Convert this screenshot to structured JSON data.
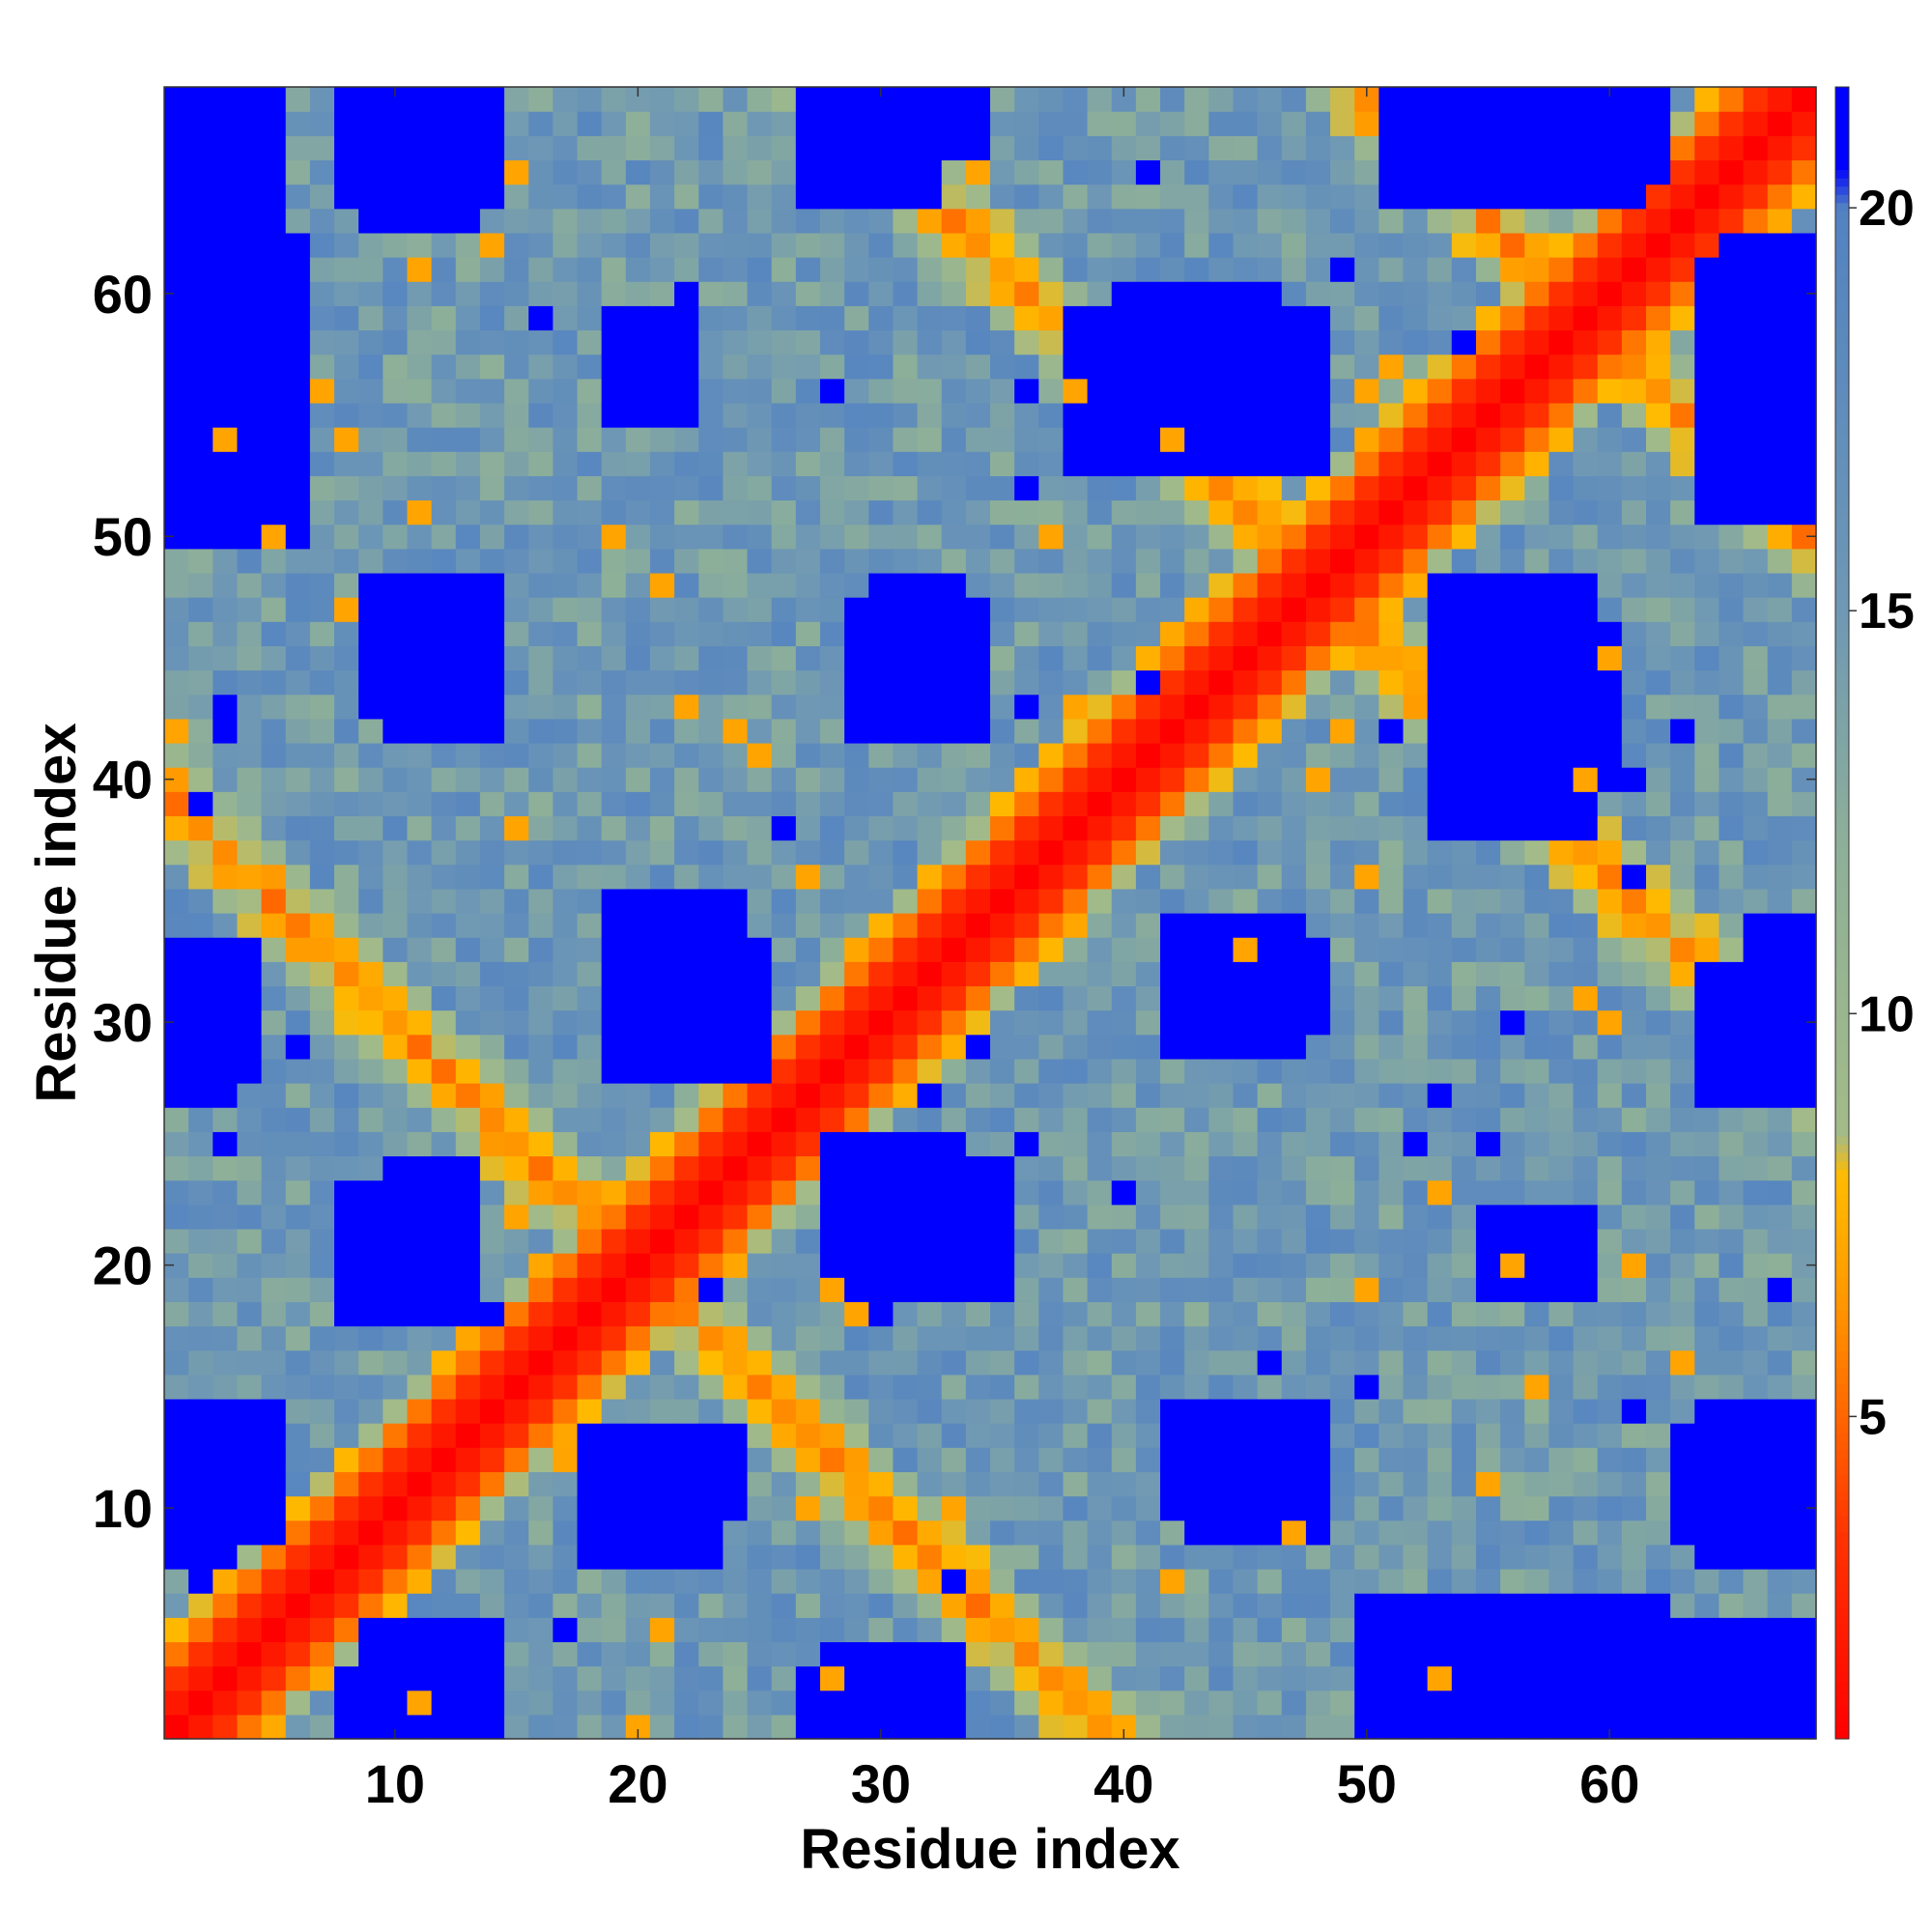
{
  "chart_data": {
    "type": "heatmap",
    "xlabel": "Residue index",
    "ylabel": "Residue index",
    "n_residues": 68,
    "xlim": [
      0.5,
      68.5
    ],
    "ylim": [
      0.5,
      68.5
    ],
    "x_ticks": [
      10,
      20,
      30,
      40,
      50,
      60
    ],
    "y_ticks": [
      10,
      20,
      30,
      40,
      50,
      60
    ],
    "colorbar": {
      "range": [
        1,
        21.5
      ],
      "ticks": [
        5,
        10,
        15,
        20
      ],
      "stops": [
        {
          "value": 1,
          "color": "#ff0000"
        },
        {
          "value": 3.5,
          "color": "#ff3300"
        },
        {
          "value": 5,
          "color": "#ff6600"
        },
        {
          "value": 6.5,
          "color": "#ff9900"
        },
        {
          "value": 8,
          "color": "#ffbb00"
        },
        {
          "value": 8.5,
          "color": "#a3bb88"
        },
        {
          "value": 12,
          "color": "#8eb098"
        },
        {
          "value": 15,
          "color": "#6f98b4"
        },
        {
          "value": 20,
          "color": "#5282c2"
        },
        {
          "value": 20.5,
          "color": "#0000ff"
        }
      ]
    },
    "matrix_rule": "d(i,j) = distance between residues i and j; 0-3.8 on diagonal band, ~5-8 on antidiagonal contact bands (i+j≈40, i+j≈96, |i-j|≈15-17 folds), >20 in far regions",
    "contact_bands": [
      {
        "type": "diagonal",
        "offset": 0
      },
      {
        "type": "antidiagonal",
        "sum": 40
      },
      {
        "type": "antidiagonal",
        "sum": 96
      },
      {
        "type": "antidiagonal",
        "sum": 118
      }
    ],
    "far_blocks": [
      {
        "i": [
          1,
          5
        ],
        "j": [
          52,
          68
        ]
      },
      {
        "i": [
          9,
          14
        ],
        "j": [
          1,
          5
        ]
      },
      {
        "i": [
          8,
          13
        ],
        "j": [
          18,
          23
        ]
      },
      {
        "i": [
          10,
          13
        ],
        "j": [
          21,
          24
        ]
      },
      {
        "i": [
          28,
          33
        ],
        "j": [
          1,
          4
        ]
      },
      {
        "i": [
          20,
          23
        ],
        "j": [
          8,
          13
        ]
      },
      {
        "i": [
          19,
          24
        ],
        "j": [
          28,
          35
        ]
      },
      {
        "i": [
          28,
          33
        ],
        "j": [
          19,
          25
        ]
      },
      {
        "i": [
          10,
          14
        ],
        "j": [
          42,
          48
        ]
      },
      {
        "i": [
          29,
          34
        ],
        "j": [
          42,
          47
        ]
      },
      {
        "i": [
          19,
          22
        ],
        "j": [
          55,
          58
        ]
      },
      {
        "i": [
          40,
          46
        ],
        "j": [
          53,
          60
        ]
      },
      {
        "i": [
          43,
          48
        ],
        "j": [
          9,
          14
        ]
      },
      {
        "i": [
          43,
          48
        ],
        "j": [
          30,
          33
        ]
      },
      {
        "i": [
          53,
          59
        ],
        "j": [
          38,
          48
        ]
      },
      {
        "i": [
          55,
          59
        ],
        "j": [
          19,
          22
        ]
      },
      {
        "i": [
          50,
          62
        ],
        "j": [
          1,
          6
        ]
      },
      {
        "i": [
          52,
          62
        ],
        "j": [
          64,
          68
        ]
      },
      {
        "i": [
          64,
          68
        ],
        "j": [
          8,
          14
        ]
      },
      {
        "i": [
          64,
          68
        ],
        "j": [
          27,
          32
        ]
      },
      {
        "i": [
          64,
          68
        ],
        "j": [
          51,
          61
        ]
      },
      {
        "i": [
          1,
          3
        ],
        "j": [
          8,
          14
        ]
      },
      {
        "i": [
          1,
          3
        ],
        "j": [
          27,
          33
        ]
      },
      {
        "i": [
          9,
          13
        ],
        "j": [
          63,
          68
        ]
      },
      {
        "i": [
          28,
          34
        ],
        "j": [
          66,
          68
        ]
      }
    ]
  }
}
